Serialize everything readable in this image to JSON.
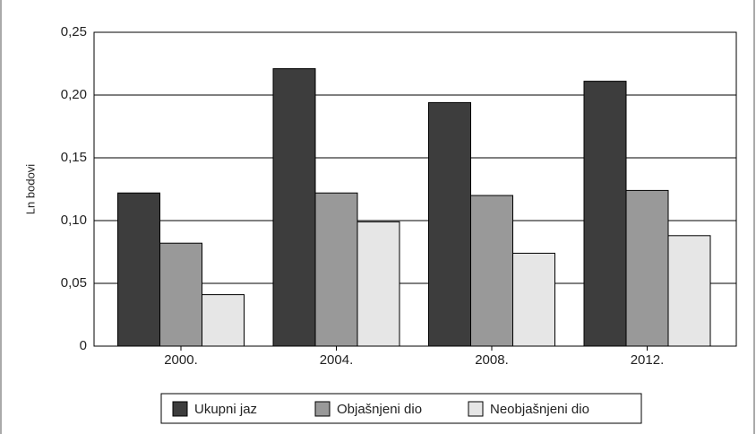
{
  "chart_data": {
    "type": "bar",
    "y_label": "Ln bodovi",
    "categories": [
      "2000.",
      "2004.",
      "2008.",
      "2012."
    ],
    "series": [
      {
        "name": "Ukupni jaz",
        "color": "#3d3d3d",
        "values": [
          0.122,
          0.221,
          0.194,
          0.211
        ]
      },
      {
        "name": "Objašnjeni dio",
        "color": "#999999",
        "values": [
          0.082,
          0.122,
          0.12,
          0.124
        ]
      },
      {
        "name": "Neobjašnjeni dio",
        "color": "#e6e6e6",
        "values": [
          0.041,
          0.099,
          0.074,
          0.088
        ]
      }
    ],
    "ylim": [
      0,
      0.25
    ],
    "yticks": [
      0,
      {
        "value": 0.05,
        "label": "0,05"
      },
      {
        "value": 0.1,
        "label": "0,10"
      },
      {
        "value": 0.15,
        "label": "0,15"
      },
      {
        "value": 0.2,
        "label": "0,20"
      },
      {
        "value": 0.25,
        "label": "0,25"
      }
    ],
    "grid": true,
    "legend": "bottom"
  }
}
